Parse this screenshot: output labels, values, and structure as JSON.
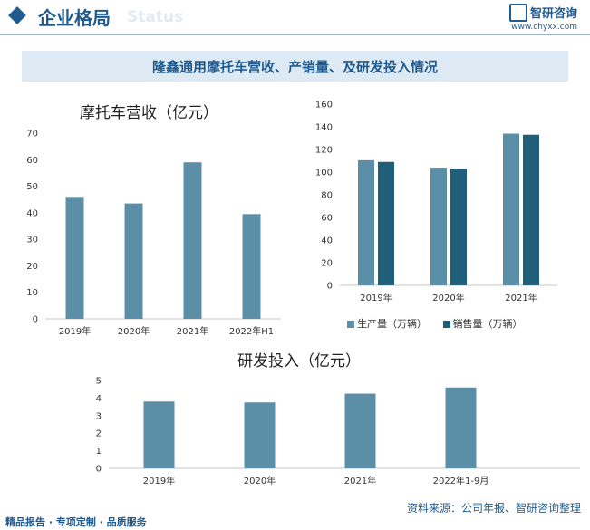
{
  "header": {
    "title": "企业格局",
    "ghost_text": "Status",
    "logo_name": "智研咨询",
    "logo_url": "www.chyxx.com"
  },
  "banner_title": "隆鑫通用摩托车营收、产销量、及研发投入情况",
  "footer_left": "精品报告 · 专项定制 · 品质服务",
  "source": "资料来源：公司年报、智研咨询整理",
  "colors": {
    "bar": "#5b8fa8",
    "bar_dark": "#1f5f7a",
    "accent": "#1f5b8f"
  },
  "chart_data": [
    {
      "type": "bar",
      "title": "摩托车营收（亿元）",
      "categories": [
        "2019年",
        "2020年",
        "2021年",
        "2022年H1"
      ],
      "values": [
        46,
        43.5,
        59,
        39.5
      ],
      "ylim": [
        0,
        70
      ],
      "yticks": [
        0,
        10,
        20,
        30,
        40,
        50,
        60,
        70
      ],
      "grid": false
    },
    {
      "type": "bar",
      "title": "",
      "categories": [
        "2019年",
        "2020年",
        "2021年"
      ],
      "series": [
        {
          "name": "生产量（万辆）",
          "values": [
            110.5,
            104,
            134
          ],
          "color": "#5b8fa8"
        },
        {
          "name": "销售量（万辆）",
          "values": [
            109,
            103,
            133
          ],
          "color": "#1f5f7a"
        }
      ],
      "ylim": [
        0,
        160
      ],
      "yticks": [
        0,
        20,
        40,
        60,
        80,
        100,
        120,
        140,
        160
      ],
      "legend": "bottom",
      "grid": false
    },
    {
      "type": "bar",
      "title": "研发投入（亿元）",
      "categories": [
        "2019年",
        "2020年",
        "2021年",
        "2022年1-9月"
      ],
      "values": [
        3.8,
        3.75,
        4.25,
        4.6
      ],
      "ylim": [
        0,
        5
      ],
      "yticks": [
        0,
        1,
        2,
        3,
        4,
        5
      ],
      "grid": false
    }
  ]
}
